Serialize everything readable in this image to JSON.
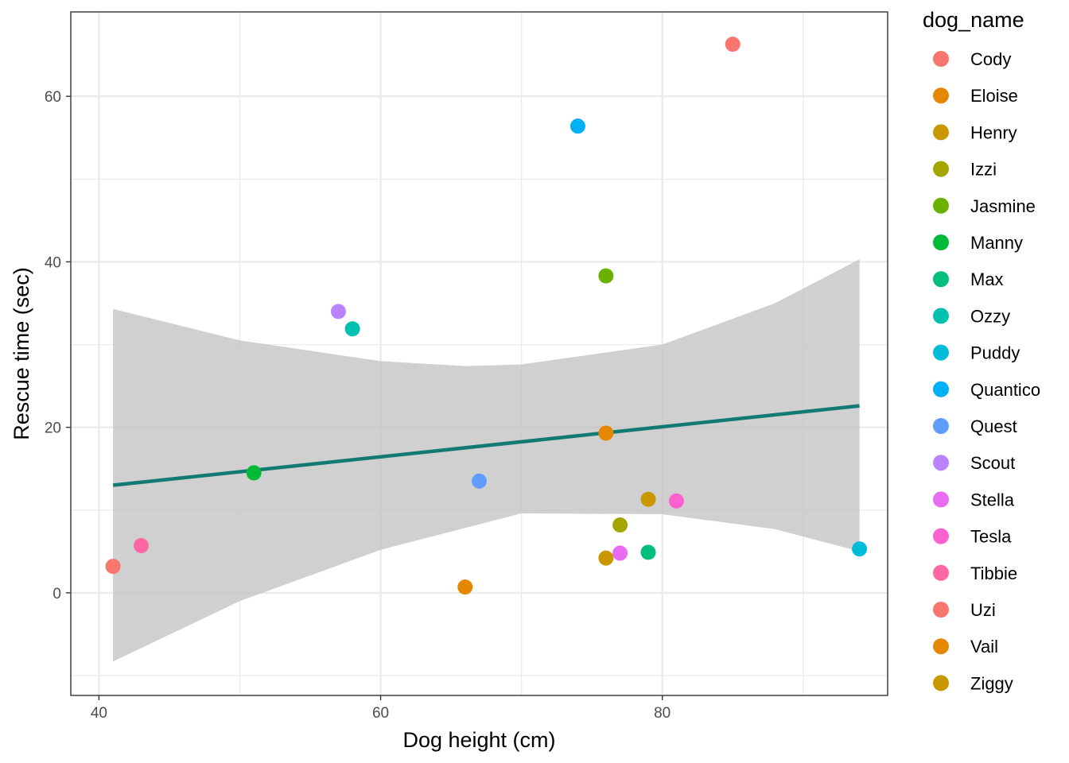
{
  "chart_data": {
    "type": "scatter",
    "xlabel": "Dog height (cm)",
    "ylabel": "Rescue time (sec)",
    "xlim": [
      38,
      96
    ],
    "ylim": [
      -12.4,
      70.2
    ],
    "x_ticks": [
      40,
      60,
      80
    ],
    "y_ticks": [
      0,
      20,
      40,
      60
    ],
    "x_minor_ticks": [
      50,
      70,
      90
    ],
    "y_minor_ticks": [
      -10,
      10,
      30,
      50
    ],
    "grid": true,
    "legend": {
      "title": "dog_name",
      "position": "right"
    },
    "points": [
      {
        "name": "Cody",
        "x": 85,
        "y": 66.3,
        "color": "#F8766D"
      },
      {
        "name": "Eloise",
        "x": 76,
        "y": 19.3,
        "color": "#E58700"
      },
      {
        "name": "Henry",
        "x": 79,
        "y": 11.3,
        "color": "#C99800"
      },
      {
        "name": "Izzi",
        "x": 77,
        "y": 8.2,
        "color": "#A3A500"
      },
      {
        "name": "Jasmine",
        "x": 76,
        "y": 38.3,
        "color": "#6BB100"
      },
      {
        "name": "Manny",
        "x": 51,
        "y": 14.5,
        "color": "#00BA38"
      },
      {
        "name": "Max",
        "x": 79,
        "y": 4.9,
        "color": "#00BF7D"
      },
      {
        "name": "Ozzy",
        "x": 58,
        "y": 31.9,
        "color": "#00C0AF"
      },
      {
        "name": "Puddy",
        "x": 94,
        "y": 5.3,
        "color": "#00BCD8"
      },
      {
        "name": "Quantico",
        "x": 74,
        "y": 56.4,
        "color": "#00B0F6"
      },
      {
        "name": "Quest",
        "x": 67,
        "y": 13.5,
        "color": "#619CFF"
      },
      {
        "name": "Scout",
        "x": 57,
        "y": 34.0,
        "color": "#B983FF"
      },
      {
        "name": "Stella",
        "x": 77,
        "y": 4.8,
        "color": "#E76BF3"
      },
      {
        "name": "Tesla",
        "x": 81,
        "y": 11.1,
        "color": "#FD61D1"
      },
      {
        "name": "Tibbie",
        "x": 43,
        "y": 5.7,
        "color": "#FF67A4"
      },
      {
        "name": "Uzi",
        "x": 41,
        "y": 3.2,
        "color": "#F8766D"
      },
      {
        "name": "Vail",
        "x": 66,
        "y": 0.7,
        "color": "#E58700"
      },
      {
        "name": "Ziggy",
        "x": 76,
        "y": 4.2,
        "color": "#C99800"
      }
    ],
    "legend_entries": [
      {
        "label": "Cody",
        "color": "#F8766D"
      },
      {
        "label": "Eloise",
        "color": "#E58700"
      },
      {
        "label": "Henry",
        "color": "#C99800"
      },
      {
        "label": "Izzi",
        "color": "#A3A500"
      },
      {
        "label": "Jasmine",
        "color": "#6BB100"
      },
      {
        "label": "Manny",
        "color": "#00BA38"
      },
      {
        "label": "Max",
        "color": "#00BF7D"
      },
      {
        "label": "Ozzy",
        "color": "#00C0AF"
      },
      {
        "label": "Puddy",
        "color": "#00BCD8"
      },
      {
        "label": "Quantico",
        "color": "#00B0F6"
      },
      {
        "label": "Quest",
        "color": "#619CFF"
      },
      {
        "label": "Scout",
        "color": "#B983FF"
      },
      {
        "label": "Stella",
        "color": "#E76BF3"
      },
      {
        "label": "Tesla",
        "color": "#FD61D1"
      },
      {
        "label": "Tibbie",
        "color": "#FF67A4"
      },
      {
        "label": "Uzi",
        "color": "#F8766D"
      },
      {
        "label": "Vail",
        "color": "#E58700"
      },
      {
        "label": "Ziggy",
        "color": "#C99800"
      }
    ],
    "smooth": {
      "method": "lm",
      "x": [
        41,
        94
      ],
      "y": [
        13.0,
        22.6
      ],
      "line_color": "#127A73",
      "band_color": "#BEBEBE",
      "band_upper": [
        [
          41,
          34.3
        ],
        [
          50,
          30.5
        ],
        [
          60,
          28.0
        ],
        [
          66,
          27.4
        ],
        [
          70,
          27.6
        ],
        [
          80,
          30.0
        ],
        [
          88,
          35.0
        ],
        [
          94,
          40.3
        ]
      ],
      "band_lower": [
        [
          94,
          5.0
        ],
        [
          88,
          7.7
        ],
        [
          80,
          9.5
        ],
        [
          70,
          9.6
        ],
        [
          60,
          5.2
        ],
        [
          50,
          -1.0
        ],
        [
          41,
          -8.3
        ]
      ]
    }
  }
}
